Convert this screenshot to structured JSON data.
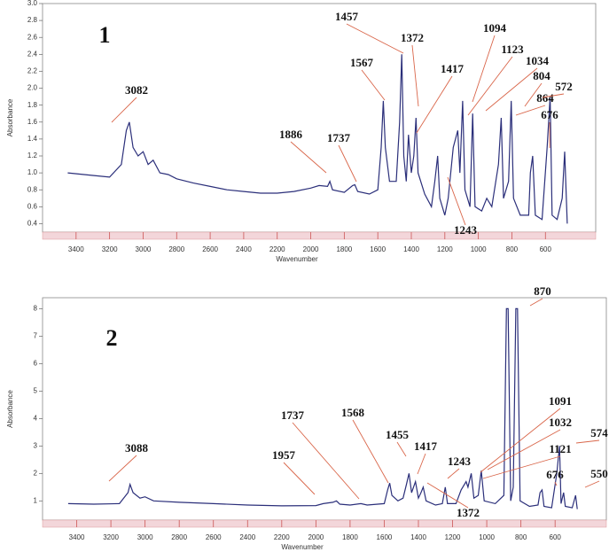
{
  "chart_data": [
    {
      "type": "line",
      "panel_label": "1",
      "ylabel": "Absorbance",
      "xlabel": "Wavenumber",
      "color": "#2b2f7a",
      "xlim": [
        3600,
        300
      ],
      "xticks": [
        3400,
        3200,
        3000,
        2800,
        2600,
        2400,
        2200,
        2000,
        1800,
        1600,
        1400,
        1200,
        1000,
        800,
        600
      ],
      "ylim": [
        0.3,
        3.0
      ],
      "yticks": [
        0.4,
        0.6,
        0.8,
        {
          "value": 1,
          "label": "1.0"
        },
        1.2,
        1.4,
        1.6,
        1.8,
        {
          "value": 2,
          "label": "2.0"
        },
        2.2,
        2.4,
        2.6,
        2.8,
        {
          "value": 3,
          "label": "3.0"
        }
      ],
      "x": [
        3450,
        3300,
        3200,
        3130,
        3100,
        3082,
        3060,
        3030,
        3000,
        2970,
        2940,
        2900,
        2850,
        2800,
        2700,
        2600,
        2500,
        2400,
        2300,
        2200,
        2100,
        2000,
        1950,
        1900,
        1886,
        1870,
        1800,
        1750,
        1737,
        1720,
        1650,
        1600,
        1580,
        1567,
        1555,
        1530,
        1490,
        1470,
        1457,
        1445,
        1430,
        1417,
        1400,
        1385,
        1372,
        1360,
        1320,
        1280,
        1260,
        1243,
        1230,
        1200,
        1180,
        1160,
        1150,
        1123,
        1110,
        1094,
        1080,
        1050,
        1034,
        1020,
        980,
        950,
        920,
        880,
        864,
        850,
        820,
        804,
        790,
        750,
        700,
        690,
        676,
        660,
        620,
        590,
        572,
        560,
        530,
        500,
        485,
        470
      ],
      "values": [
        1.0,
        0.97,
        0.95,
        1.1,
        1.5,
        1.6,
        1.3,
        1.2,
        1.25,
        1.1,
        1.15,
        1.0,
        0.98,
        0.93,
        0.88,
        0.84,
        0.8,
        0.78,
        0.76,
        0.76,
        0.78,
        0.82,
        0.85,
        0.84,
        0.9,
        0.8,
        0.77,
        0.85,
        0.86,
        0.78,
        0.75,
        0.8,
        1.3,
        1.85,
        1.3,
        0.9,
        0.9,
        1.6,
        2.4,
        1.2,
        0.9,
        1.45,
        1.0,
        1.2,
        1.65,
        1.0,
        0.75,
        0.6,
        0.9,
        1.2,
        0.7,
        0.5,
        0.7,
        1.1,
        1.3,
        1.5,
        1.0,
        1.85,
        0.8,
        0.6,
        1.7,
        0.6,
        0.55,
        0.7,
        0.6,
        1.1,
        1.65,
        0.7,
        0.9,
        1.85,
        0.7,
        0.5,
        0.5,
        1.0,
        1.2,
        0.5,
        0.45,
        1.3,
        1.9,
        0.5,
        0.45,
        0.7,
        1.25,
        0.4
      ],
      "annotations": [
        "3082",
        "1886",
        "1737",
        "1567",
        "1457",
        "1372",
        "1417",
        "1094",
        "1123",
        "1034",
        "804",
        "864",
        "572",
        "676",
        "1243"
      ]
    },
    {
      "type": "line",
      "panel_label": "2",
      "ylabel": "Absorbance",
      "xlabel": "Wavenumber",
      "color": "#2b2f7a",
      "xlim": [
        3600,
        300
      ],
      "xticks": [
        3400,
        3200,
        3000,
        2800,
        2600,
        2400,
        2200,
        2000,
        1800,
        1600,
        1400,
        1200,
        1000,
        800,
        600
      ],
      "ylim": [
        0.3,
        8.4
      ],
      "yticks": [
        1,
        2,
        3,
        4,
        5,
        6,
        7,
        8
      ],
      "x": [
        3450,
        3300,
        3150,
        3100,
        3088,
        3070,
        3030,
        3000,
        2950,
        2800,
        2600,
        2400,
        2200,
        2000,
        1957,
        1900,
        1880,
        1860,
        1800,
        1737,
        1700,
        1600,
        1580,
        1568,
        1555,
        1520,
        1490,
        1470,
        1455,
        1440,
        1417,
        1400,
        1385,
        1372,
        1355,
        1300,
        1260,
        1243,
        1230,
        1180,
        1150,
        1121,
        1110,
        1091,
        1075,
        1050,
        1032,
        1015,
        950,
        900,
        885,
        875,
        860,
        845,
        830,
        820,
        805,
        750,
        700,
        688,
        676,
        665,
        620,
        590,
        574,
        565,
        550,
        540,
        500,
        480,
        470
      ],
      "values": [
        0.9,
        0.88,
        0.9,
        1.3,
        1.6,
        1.3,
        1.1,
        1.15,
        1.0,
        0.95,
        0.9,
        0.85,
        0.82,
        0.83,
        0.9,
        0.95,
        1.0,
        0.88,
        0.85,
        0.9,
        0.85,
        0.9,
        1.4,
        1.65,
        1.2,
        1.0,
        1.1,
        1.6,
        2.0,
        1.3,
        1.7,
        1.1,
        1.3,
        1.5,
        1.0,
        0.85,
        0.9,
        1.5,
        0.9,
        0.9,
        1.4,
        1.7,
        1.5,
        2.0,
        1.1,
        1.2,
        2.1,
        1.0,
        0.9,
        1.2,
        8.0,
        8.0,
        1.0,
        1.5,
        8.0,
        8.0,
        1.0,
        0.8,
        0.85,
        1.3,
        1.4,
        0.8,
        0.75,
        2.0,
        3.0,
        0.9,
        1.3,
        0.8,
        0.75,
        1.2,
        0.7
      ],
      "annotations": [
        "3088",
        "1957",
        "1737",
        "1568",
        "1455",
        "1417",
        "1243",
        "1372",
        "870",
        "1091",
        "1032",
        "1121",
        "574",
        "676",
        "550"
      ]
    }
  ]
}
